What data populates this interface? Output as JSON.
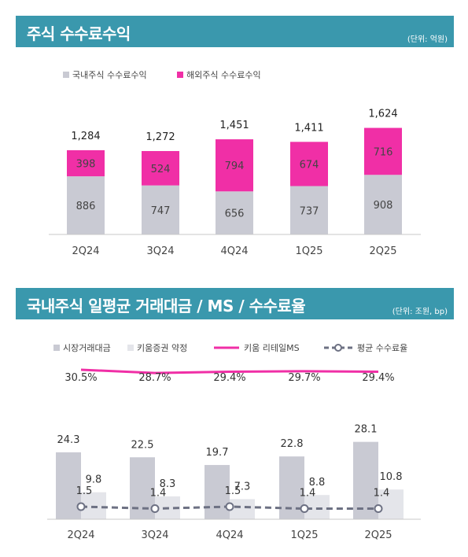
{
  "section1": {
    "title": "주식 수수료수익",
    "unit": "(단위: 억원)"
  },
  "section2": {
    "title": "국내주식 일평균 거래대금 / MS / 수수료율",
    "unit": "(단위: 조원, bp)"
  },
  "colors": {
    "banner": "#3a98ad",
    "gray_bar": "#c9cad3",
    "pink": "#f02fa6",
    "light_bar": "#e4e5ea",
    "dash_line": "#6d7183"
  },
  "chart_data": [
    {
      "type": "bar",
      "stacked": true,
      "categories": [
        "2Q24",
        "3Q24",
        "4Q24",
        "1Q25",
        "2Q25"
      ],
      "series": [
        {
          "name": "국내주식 수수료수익",
          "values": [
            886,
            747,
            656,
            737,
            908
          ],
          "color": "#c9cad3"
        },
        {
          "name": "해외주식 수수료수익",
          "values": [
            398,
            524,
            794,
            674,
            716
          ],
          "color": "#f02fa6"
        }
      ],
      "totals": [
        1284,
        1272,
        1451,
        1411,
        1624
      ],
      "total_labels": [
        "1,284",
        "1,272",
        "1,451",
        "1,411",
        "1,624"
      ],
      "legend_position": "top-left",
      "grid": false
    },
    {
      "type": "bar",
      "categories": [
        "2Q24",
        "3Q24",
        "4Q24",
        "1Q25",
        "2Q25"
      ],
      "series": [
        {
          "name": "시장거래대금",
          "type": "bar",
          "values": [
            24.3,
            22.5,
            19.7,
            22.8,
            28.1
          ],
          "color": "#c9cad3"
        },
        {
          "name": "키움증권 약정",
          "type": "bar",
          "values": [
            9.8,
            8.3,
            7.3,
            8.8,
            10.8
          ],
          "color": "#e4e5ea"
        },
        {
          "name": "키움 리테일MS",
          "type": "line",
          "values": [
            30.5,
            28.7,
            29.4,
            29.7,
            29.4
          ],
          "labels": [
            "30.5%",
            "28.7%",
            "29.4%",
            "29.7%",
            "29.4%"
          ],
          "color": "#f02fa6"
        },
        {
          "name": "평균 수수료율",
          "type": "line",
          "values": [
            1.5,
            1.4,
            1.5,
            1.4,
            1.4
          ],
          "color": "#6d7183"
        }
      ],
      "legend_position": "top-left",
      "grid": false
    }
  ]
}
